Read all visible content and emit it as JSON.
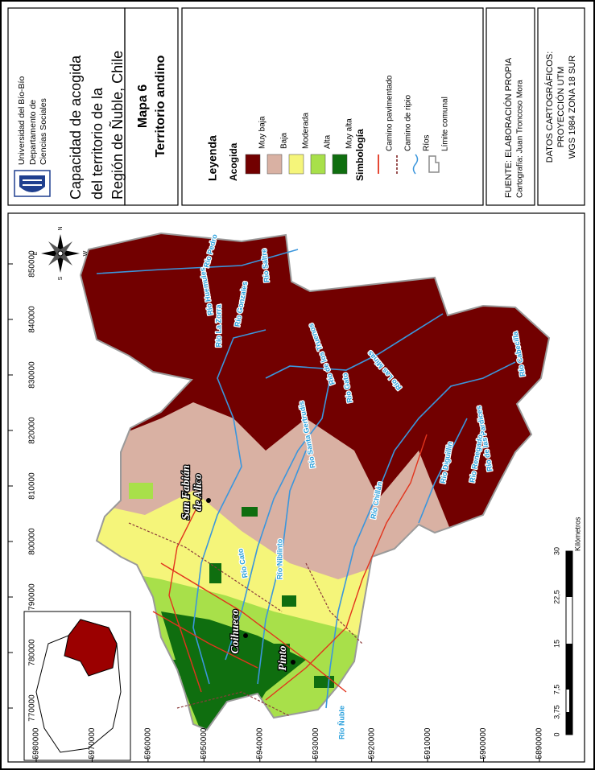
{
  "header": {
    "university": [
      "Universidad del Bío-Bío",
      "Departamento de",
      "Ciencias Sociales"
    ],
    "title": [
      "Capacidad de acogida",
      "del territorio de la",
      "Región de Ñuble, Chile"
    ],
    "map_number": "Mapa 6",
    "map_subtitle": "Territorio andino"
  },
  "legend": {
    "title": "Leyenda",
    "acogida_title": "Acogida",
    "classes": [
      {
        "label": "Muy baja",
        "color": "#720000"
      },
      {
        "label": "Baja",
        "color": "#d9b1a3"
      },
      {
        "label": "Moderada",
        "color": "#f5f57a"
      },
      {
        "label": "Alta",
        "color": "#a8e04a"
      },
      {
        "label": "Muy alta",
        "color": "#0f6e0f"
      }
    ],
    "symbology_title": "Simbología",
    "symbols": [
      {
        "label": "Camino pavimentado",
        "color": "#e2341d"
      },
      {
        "label": "Camino de ripio",
        "color": "#8c3b3b"
      },
      {
        "label": "Ríos",
        "color": "#3b96dc"
      },
      {
        "label": "Límite comunal",
        "color": "#8a8a8a"
      }
    ]
  },
  "source": [
    "FUENTE: ELABORACIÓN PROPIA",
    "Cartografía: Juan Troncoso Mora"
  ],
  "datum": [
    "DATOS CARTOGRÁFICOS:",
    "PROYECCIÓN UTM",
    "WGS 1984 ZONA 18 SUR"
  ],
  "map": {
    "easting_ticks": [
      850000,
      840000,
      830000,
      820000,
      810000,
      800000,
      790000,
      780000,
      770000
    ],
    "northing_ticks": [
      5980000,
      5970000,
      5960000,
      5950000,
      5940000,
      5930000,
      5920000,
      5910000,
      5900000,
      5890000
    ],
    "compass": [
      "N",
      "S",
      "E",
      "W"
    ],
    "places": [
      [
        "San Fabián",
        "de Alico"
      ],
      [
        "Coihueco"
      ],
      [
        "Pinto"
      ]
    ],
    "rivers": [
      "Río Saltre",
      "Río Pedro",
      "Río Gonzales",
      "Río La Zorra",
      "Río Huemules",
      "Río de los Truenos",
      "Río Las Minas",
      "Río Gato",
      "Río Santa Gertrudis",
      "Río Chillán",
      "Río Niblinto",
      "Río Cato",
      "Río Ñuble",
      "Río de las Pardices",
      "Río Cabecilla",
      "Río Diguillín",
      "Río Renegado"
    ],
    "scale": {
      "labels": [
        "0",
        "3,75",
        "7,5",
        "15",
        "22,5",
        "30"
      ],
      "unit": "Kilómetros"
    }
  }
}
